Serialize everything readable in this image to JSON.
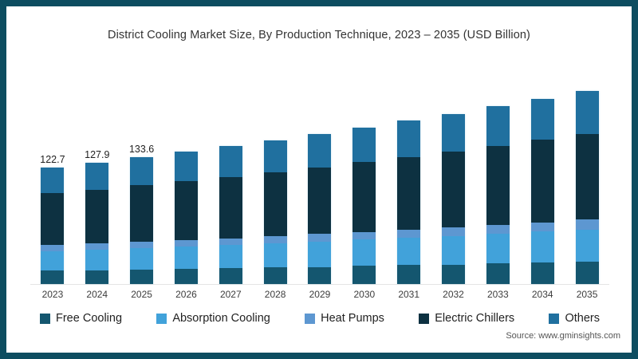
{
  "frame": {
    "border_color": "#0d4d60",
    "background": "#ffffff"
  },
  "title": "District Cooling Market Size, By Production Technique, 2023 – 2035 (USD Billion)",
  "source": "Source: www.gminsights.com",
  "chart_data": {
    "type": "bar",
    "stacked": true,
    "title": "District Cooling Market Size, By Production Technique, 2023 – 2035 (USD Billion)",
    "xlabel": "",
    "ylabel": "USD Billion",
    "ylim": [
      0,
      210
    ],
    "grid": false,
    "legend_position": "bottom",
    "categories": [
      "2023",
      "2024",
      "2025",
      "2026",
      "2027",
      "2028",
      "2029",
      "2030",
      "2031",
      "2032",
      "2033",
      "2034",
      "2035"
    ],
    "series": [
      {
        "name": "Free Cooling",
        "color": "#14566f",
        "values": [
          14.1,
          14.7,
          15.3,
          16.0,
          16.7,
          17.4,
          18.1,
          19.0,
          19.8,
          20.6,
          21.5,
          22.4,
          23.4
        ]
      },
      {
        "name": "Absorption Cooling",
        "color": "#41a2da",
        "values": [
          20.6,
          21.5,
          22.4,
          23.4,
          24.4,
          25.5,
          26.6,
          27.7,
          28.9,
          30.1,
          31.4,
          32.8,
          34.2
        ]
      },
      {
        "name": "Heat Pumps",
        "color": "#5d97d1",
        "values": [
          6.1,
          6.4,
          6.7,
          7.0,
          7.2,
          7.5,
          7.9,
          8.2,
          8.6,
          9.0,
          9.4,
          9.8,
          10.2
        ]
      },
      {
        "name": "Electric Chillers",
        "color": "#0d3141",
        "values": [
          54.6,
          56.9,
          59.5,
          62.0,
          64.7,
          67.5,
          70.4,
          73.4,
          76.5,
          79.8,
          83.3,
          86.9,
          90.6
        ]
      },
      {
        "name": "Others",
        "color": "#20709f",
        "values": [
          27.3,
          28.4,
          29.7,
          30.9,
          32.3,
          33.7,
          35.1,
          36.6,
          38.2,
          39.9,
          41.5,
          43.3,
          45.2
        ]
      }
    ],
    "totals": [
      122.7,
      127.9,
      133.6,
      139.3,
      145.3,
      151.6,
      158.1,
      164.9,
      172.0,
      179.4,
      187.1,
      195.2,
      203.6
    ],
    "data_labels": [
      "122.7",
      "127.9",
      "133.6",
      "",
      "",
      "",
      "",
      "",
      "",
      "",
      "",
      "",
      ""
    ]
  }
}
